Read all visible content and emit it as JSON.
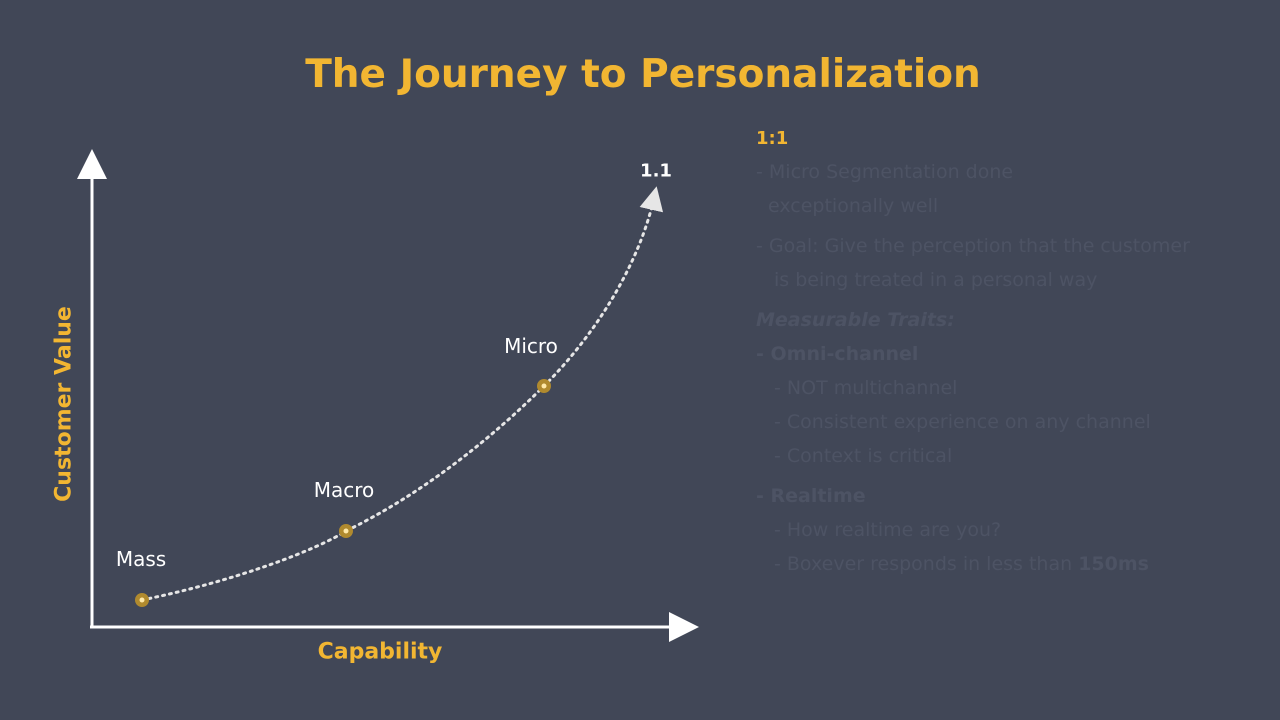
{
  "title": "The Journey to Personalization",
  "chart_data": {
    "type": "line",
    "xlabel": "Capability",
    "ylabel": "Customer Value",
    "points": [
      {
        "label": "Mass",
        "x": 1,
        "y": 1
      },
      {
        "label": "Macro",
        "x": 2,
        "y": 2
      },
      {
        "label": "Micro",
        "x": 3,
        "y": 4
      }
    ],
    "endpoint_label": "1.1",
    "colors": {
      "accent": "#F2B632",
      "axis": "#FFFFFF",
      "curve": "#E6E6E6",
      "background": "#414757"
    }
  },
  "notes": {
    "heading": "1:1",
    "micro_seg_line1": "- Micro Segmentation done",
    "micro_seg_line2": "exceptionally well",
    "goal_line1": "- Goal: Give the perception that the customer",
    "goal_line2": "is being treated in a personal way",
    "traits_heading": "Measurable Traits:",
    "omni_heading": "- Omni-channel",
    "omni_items": [
      "- NOT multichannel",
      "- Consistent experience on any channel",
      "- Context is critical"
    ],
    "realtime_heading": "- Realtime",
    "realtime_item1": "- How realtime are you?",
    "realtime_item2_prefix": "- Boxever responds in less than ",
    "realtime_item2_bold": "150ms"
  }
}
